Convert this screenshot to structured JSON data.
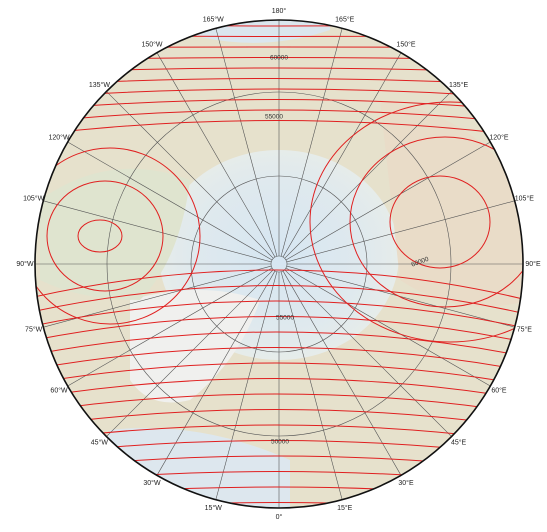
{
  "map": {
    "meridian_labels": [
      "0°",
      "15°E",
      "30°E",
      "45°E",
      "60°E",
      "75°E",
      "90°E",
      "105°E",
      "120°E",
      "135°E",
      "150°E",
      "165°E",
      "180°",
      "165°W",
      "150°W",
      "135°W",
      "120°W",
      "105°W",
      "90°W",
      "75°W",
      "60°W",
      "45°W",
      "30°W",
      "15°W"
    ],
    "contour_labels": [
      "60000",
      "55000",
      "60000",
      "55000",
      "50000"
    ]
  }
}
